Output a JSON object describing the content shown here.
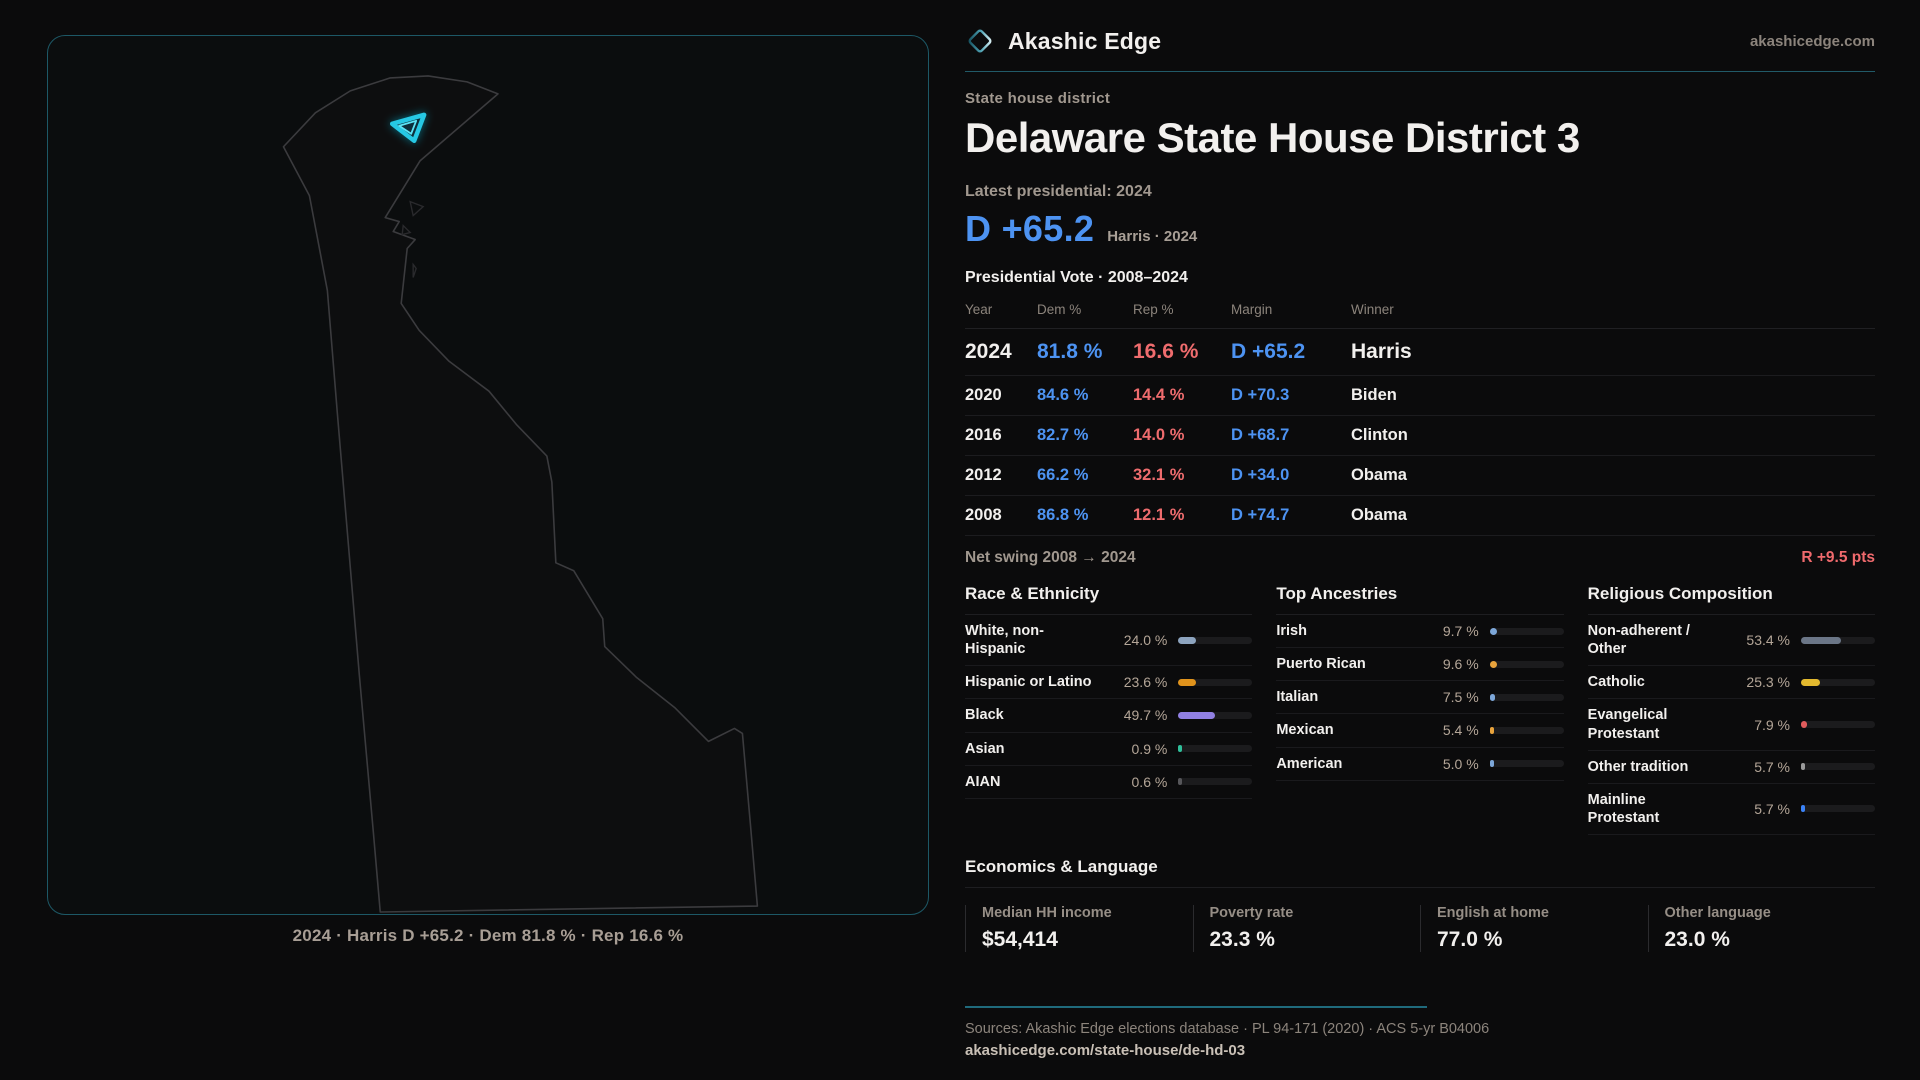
{
  "brand": {
    "name": "Akashic Edge",
    "domain": "akashicedge.com"
  },
  "page": {
    "kicker": "State house district",
    "title": "Delaware State House District 3"
  },
  "headline": {
    "label": "Latest presidential: 2024",
    "margin": "D +65.2",
    "sub": "Harris · 2024"
  },
  "table": {
    "title": "Presidential Vote · 2008–2024",
    "columns": {
      "year": "Year",
      "dem": "Dem %",
      "rep": "Rep %",
      "margin": "Margin",
      "winner": "Winner"
    },
    "rows": [
      {
        "year": "2024",
        "dem": "81.8 %",
        "rep": "16.6 %",
        "margin": "D +65.2",
        "winner": "Harris"
      },
      {
        "year": "2020",
        "dem": "84.6 %",
        "rep": "14.4 %",
        "margin": "D +70.3",
        "winner": "Biden"
      },
      {
        "year": "2016",
        "dem": "82.7 %",
        "rep": "14.0 %",
        "margin": "D +68.7",
        "winner": "Clinton"
      },
      {
        "year": "2012",
        "dem": "66.2 %",
        "rep": "32.1 %",
        "margin": "D +34.0",
        "winner": "Obama"
      },
      {
        "year": "2008",
        "dem": "86.8 %",
        "rep": "12.1 %",
        "margin": "D +74.7",
        "winner": "Obama"
      }
    ]
  },
  "net_swing": {
    "label": "Net swing 2008 → 2024",
    "value": "R +9.5 pts"
  },
  "sections": [
    {
      "title": "Race & Ethnicity",
      "rows": [
        {
          "label": "White, non-Hispanic",
          "value": "24.0 %",
          "pct": 24.0,
          "color": "#8da4bf"
        },
        {
          "label": "Hispanic or Latino",
          "value": "23.6 %",
          "pct": 23.6,
          "color": "#e0931c"
        },
        {
          "label": "Black",
          "value": "49.7 %",
          "pct": 49.7,
          "color": "#9180e3"
        },
        {
          "label": "Asian",
          "value": "0.9 %",
          "pct": 0.9,
          "color": "#2fbf9a"
        },
        {
          "label": "AIAN",
          "value": "0.6 %",
          "pct": 0.6,
          "color": "#56565a"
        }
      ]
    },
    {
      "title": "Top Ancestries",
      "rows": [
        {
          "label": "Irish",
          "value": "9.7 %",
          "pct": 9.7,
          "color": "#7da7d9"
        },
        {
          "label": "Puerto Rican",
          "value": "9.6 %",
          "pct": 9.6,
          "color": "#e8a33c"
        },
        {
          "label": "Italian",
          "value": "7.5 %",
          "pct": 7.5,
          "color": "#7da7d9"
        },
        {
          "label": "Mexican",
          "value": "5.4 %",
          "pct": 5.4,
          "color": "#e8a33c"
        },
        {
          "label": "American",
          "value": "5.0 %",
          "pct": 5.0,
          "color": "#7da7d9"
        }
      ]
    },
    {
      "title": "Religious Composition",
      "rows": [
        {
          "label": "Non-adherent / Other",
          "value": "53.4 %",
          "pct": 53.4,
          "color": "#6b7687"
        },
        {
          "label": "Catholic",
          "value": "25.3 %",
          "pct": 25.3,
          "color": "#e3b92e"
        },
        {
          "label": "Evangelical Protestant",
          "value": "7.9 %",
          "pct": 7.9,
          "color": "#e05c5c"
        },
        {
          "label": "Other tradition",
          "value": "5.7 %",
          "pct": 5.7,
          "color": "#9a9a9a"
        },
        {
          "label": "Mainline Protestant",
          "value": "5.7 %",
          "pct": 5.7,
          "color": "#3b82f6"
        }
      ]
    }
  ],
  "economics": {
    "title": "Economics & Language",
    "stats": [
      {
        "label": "Median HH income",
        "value": "$54,414"
      },
      {
        "label": "Poverty rate",
        "value": "23.3 %"
      },
      {
        "label": "English at home",
        "value": "77.0 %"
      },
      {
        "label": "Other language",
        "value": "23.0 %"
      }
    ]
  },
  "map": {
    "caption": "2024 · Harris D +65.2 · Dem 81.8 % · Rep 16.6 %"
  },
  "footer": {
    "sources": "Sources: Akashic Edge elections database · PL 94-171 (2020) · ACS 5-yr B04006",
    "permalink": "akashicedge.com/state-house/de-hd-03"
  },
  "colors": {
    "dem_blue": "#4d93f2",
    "rep_red": "#ef6c6e",
    "accent_teal": "#2fd6f0",
    "background": "#0b0b0c",
    "muted_text": "#a1988f",
    "value_text": "#b4a698"
  },
  "chart_data": [
    {
      "type": "table",
      "title": "Presidential Vote · 2008–2024",
      "columns": [
        "Year",
        "Dem %",
        "Rep %",
        "Margin",
        "Winner"
      ],
      "rows": [
        [
          2024,
          81.8,
          16.6,
          "D +65.2",
          "Harris"
        ],
        [
          2020,
          84.6,
          14.4,
          "D +70.3",
          "Biden"
        ],
        [
          2016,
          82.7,
          14.0,
          "D +68.7",
          "Clinton"
        ],
        [
          2012,
          66.2,
          32.1,
          "D +34.0",
          "Obama"
        ],
        [
          2008,
          86.8,
          12.1,
          "D +74.7",
          "Obama"
        ]
      ]
    },
    {
      "type": "bar",
      "title": "Race & Ethnicity",
      "categories": [
        "White, non-Hispanic",
        "Hispanic or Latino",
        "Black",
        "Asian",
        "AIAN"
      ],
      "values": [
        24.0,
        23.6,
        49.7,
        0.9,
        0.6
      ],
      "xlabel": "",
      "ylabel": "Percent",
      "ylim": [
        0,
        100
      ]
    },
    {
      "type": "bar",
      "title": "Top Ancestries",
      "categories": [
        "Irish",
        "Puerto Rican",
        "Italian",
        "Mexican",
        "American"
      ],
      "values": [
        9.7,
        9.6,
        7.5,
        5.4,
        5.0
      ],
      "xlabel": "",
      "ylabel": "Percent",
      "ylim": [
        0,
        100
      ]
    },
    {
      "type": "bar",
      "title": "Religious Composition",
      "categories": [
        "Non-adherent / Other",
        "Catholic",
        "Evangelical Protestant",
        "Other tradition",
        "Mainline Protestant"
      ],
      "values": [
        53.4,
        25.3,
        7.9,
        5.7,
        5.7
      ],
      "xlabel": "",
      "ylabel": "Percent",
      "ylim": [
        0,
        100
      ]
    },
    {
      "type": "bar",
      "title": "Economics & Language",
      "categories": [
        "Median HH income ($)",
        "Poverty rate %",
        "English at home %",
        "Other language %"
      ],
      "values": [
        54414,
        23.3,
        77.0,
        23.0
      ]
    }
  ]
}
